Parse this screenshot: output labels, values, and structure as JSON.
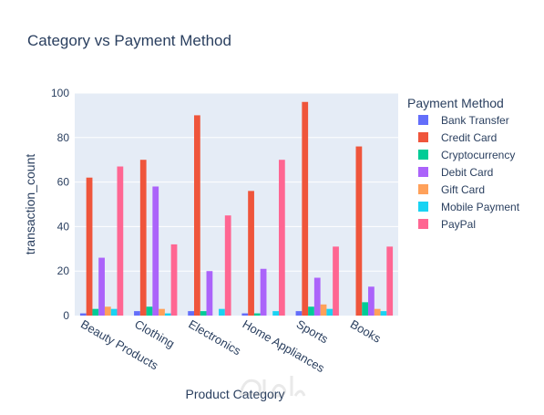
{
  "chart_data": {
    "type": "bar",
    "title": "Category vs Payment Method",
    "xlabel": "Product Category",
    "ylabel": "transaction_count",
    "ylim": [
      0,
      100
    ],
    "yticks": [
      0,
      20,
      40,
      60,
      80,
      100
    ],
    "grid": true,
    "legend": {
      "title": "Payment Method",
      "placement": "right"
    },
    "categories": [
      "Beauty Products",
      "Clothing",
      "Electronics",
      "Home Appliances",
      "Sports",
      "Books"
    ],
    "series": [
      {
        "name": "Bank Transfer",
        "color": "#636efa",
        "values": [
          1,
          2,
          2,
          1,
          2,
          0
        ]
      },
      {
        "name": "Credit Card",
        "color": "#ef553b",
        "values": [
          62,
          70,
          90,
          56,
          96,
          76
        ]
      },
      {
        "name": "Cryptocurrency",
        "color": "#00cc96",
        "values": [
          3,
          4,
          2,
          1,
          4,
          6
        ]
      },
      {
        "name": "Debit Card",
        "color": "#ab63fa",
        "values": [
          26,
          58,
          20,
          21,
          17,
          13
        ]
      },
      {
        "name": "Gift Card",
        "color": "#ffa15a",
        "values": [
          4,
          3,
          0,
          0,
          5,
          3
        ]
      },
      {
        "name": "Mobile Payment",
        "color": "#19d3f3",
        "values": [
          3,
          1,
          3,
          2,
          3,
          2
        ]
      },
      {
        "name": "PayPal",
        "color": "#ff6692",
        "values": [
          67,
          32,
          45,
          70,
          31,
          31
        ]
      }
    ]
  },
  "watermark_icon": "mostaql-logo-watermark"
}
